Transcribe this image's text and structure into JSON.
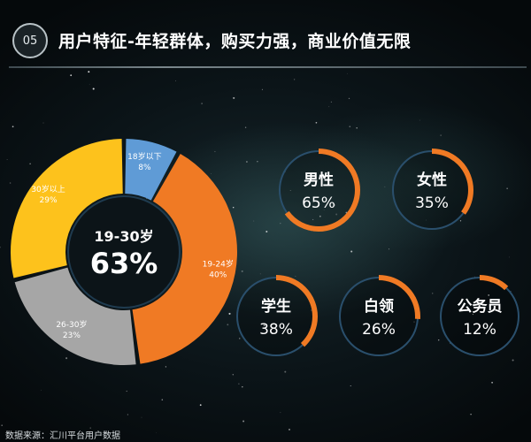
{
  "header": {
    "badge": "05",
    "title": "用户特征-年轻群体，购买力强，商业价值无限"
  },
  "colors": {
    "orange": "#f07a24",
    "yellow": "#fdc21c",
    "gray": "#a6a6a6",
    "blue": "#5f9bd6",
    "navy": "#2a4f6c"
  },
  "chart_data": [
    {
      "type": "pie",
      "series": [
        {
          "label": [
            "18岁以下",
            "8%"
          ],
          "value": 8,
          "color": "#5f9bd6"
        },
        {
          "label": [
            "19-24岁",
            "40%"
          ],
          "value": 40,
          "color": "#f07a24"
        },
        {
          "label": [
            "26-30岁",
            "23%"
          ],
          "value": 23,
          "color": "#a6a6a6"
        },
        {
          "label": [
            "30岁以上",
            "29%"
          ],
          "value": 29,
          "color": "#fdc21c"
        }
      ],
      "center_label": "19-30岁",
      "center_value": "63%"
    },
    {
      "type": "gauge",
      "items": [
        {
          "label": "男性",
          "value": 65,
          "text": "65%"
        },
        {
          "label": "女性",
          "value": 35,
          "text": "35%"
        },
        {
          "label": "学生",
          "value": 38,
          "text": "38%"
        },
        {
          "label": "白领",
          "value": 26,
          "text": "26%"
        },
        {
          "label": "公务员",
          "value": 12,
          "text": "12%"
        }
      ]
    }
  ],
  "footer": {
    "source": "数据来源：汇川平台用户数据"
  }
}
